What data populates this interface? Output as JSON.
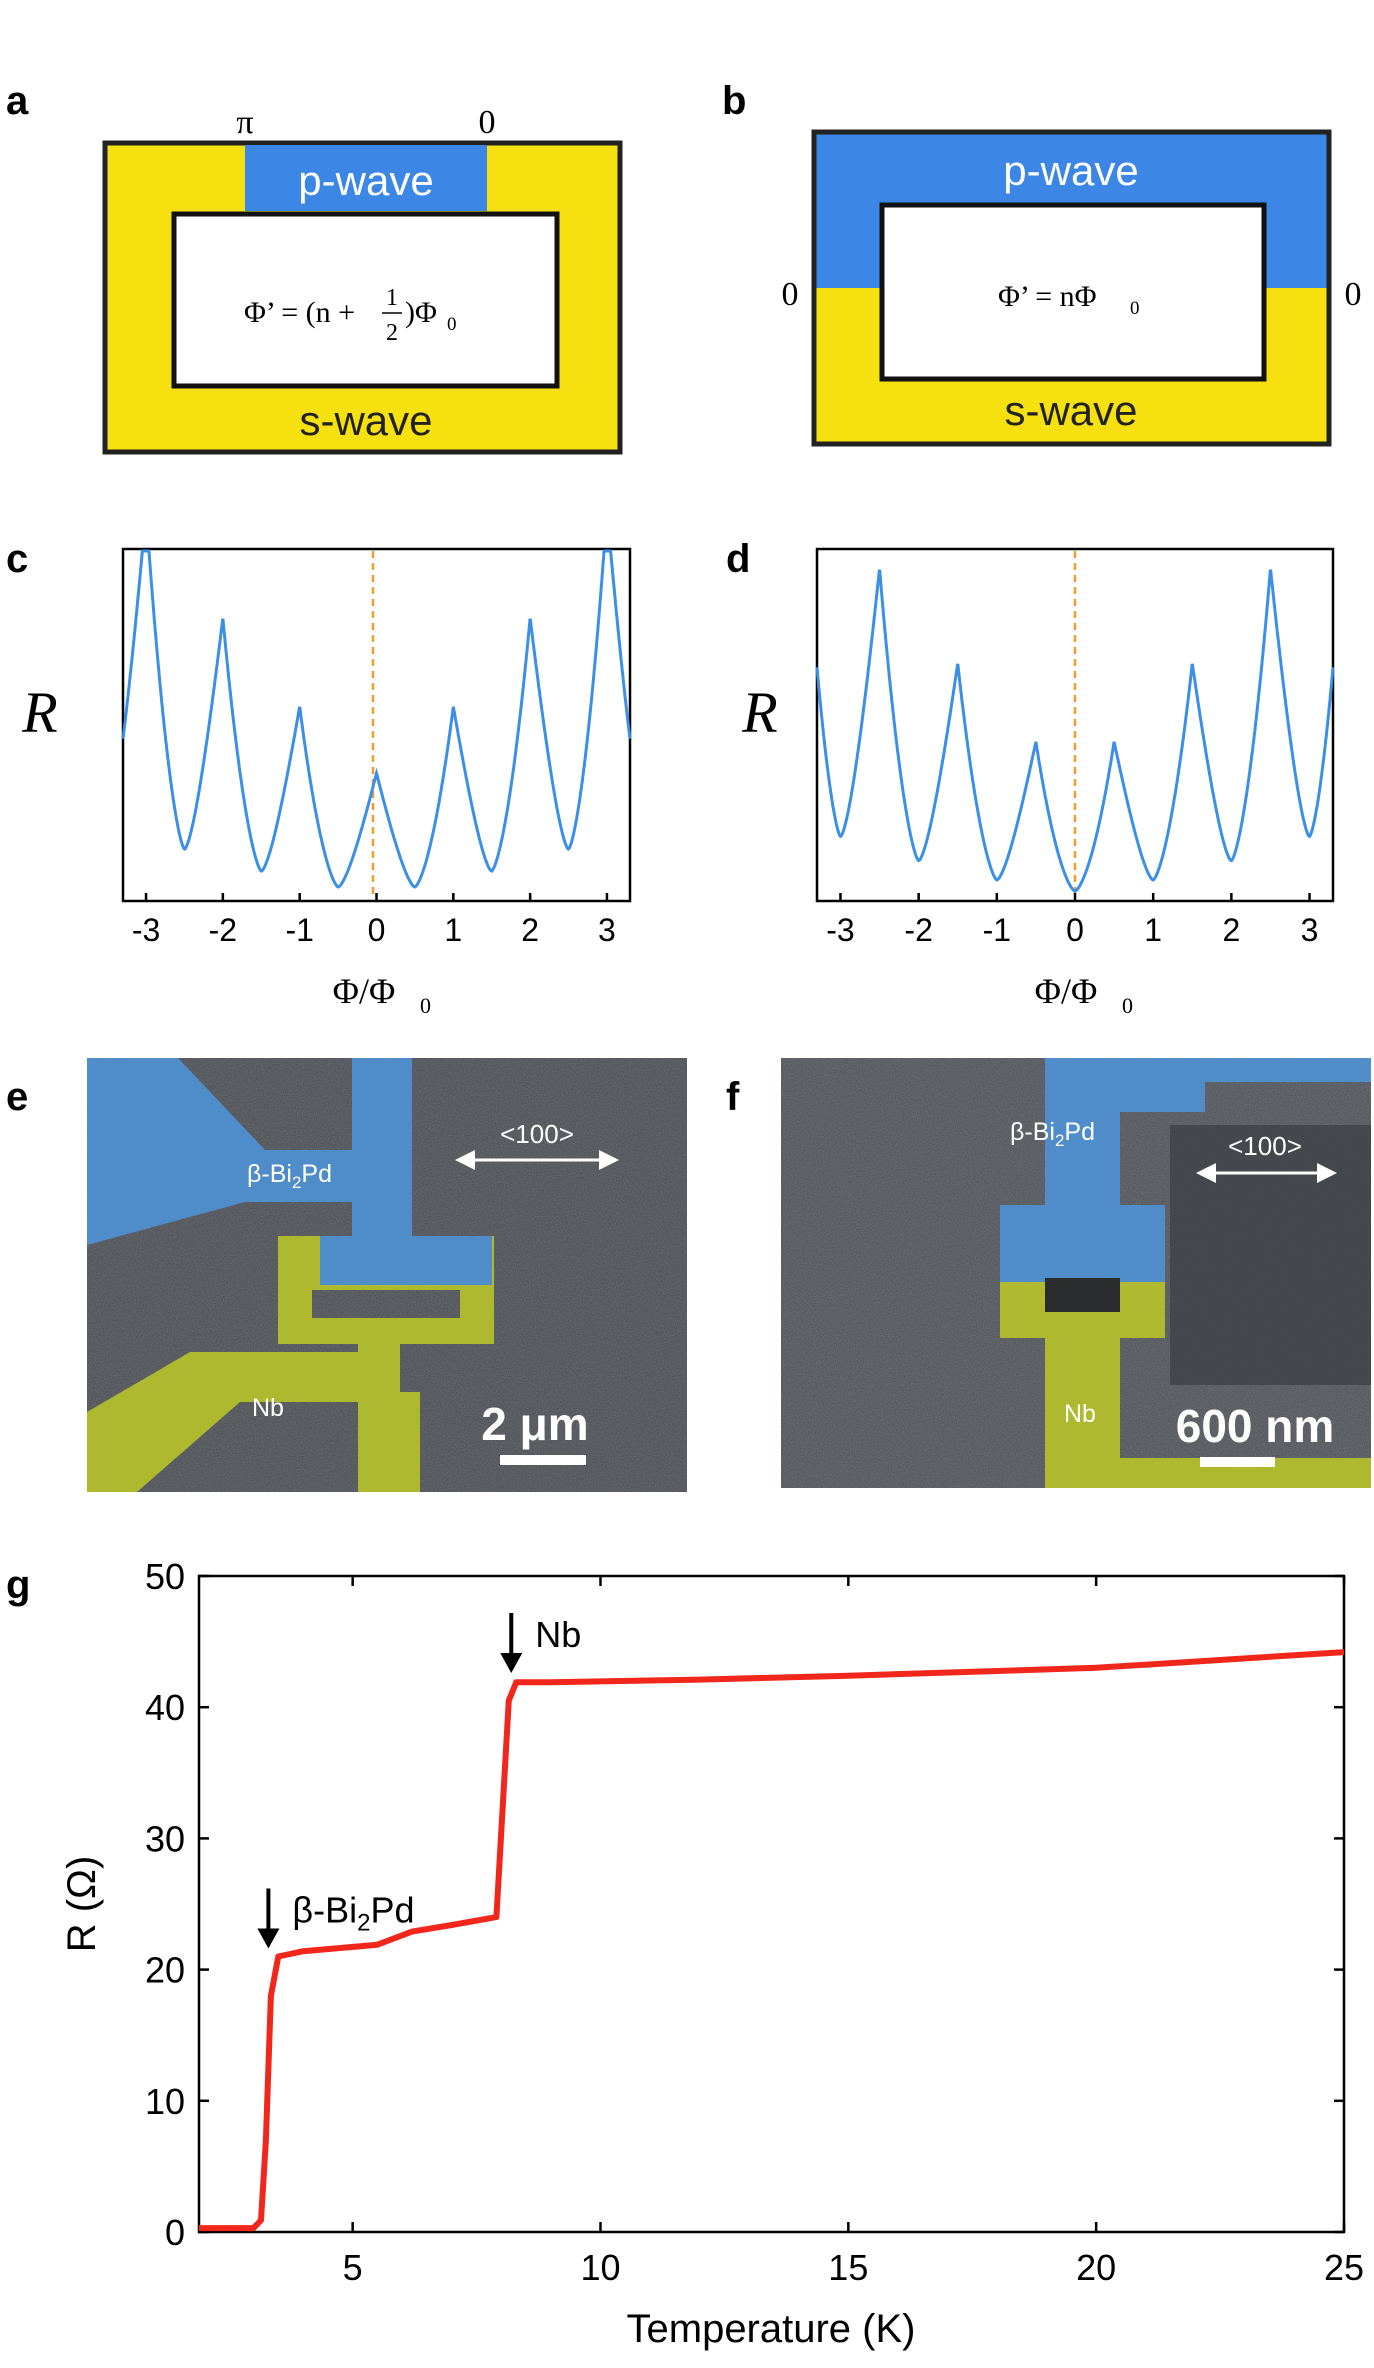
{
  "colors": {
    "s_wave": "#F7E010",
    "p_wave": "#3C86E6",
    "curve_blue": "#3C8FE6",
    "dashed_orange": "#F39A2E",
    "red_curve": "#F2271C",
    "sem_gray": "#4A4E52",
    "sem_blue": "#4F8FD0",
    "sem_green": "#B2BE2C"
  },
  "panel_labels": {
    "a": "a",
    "b": "b",
    "c": "c",
    "d": "d",
    "e": "e",
    "f": "f",
    "g": "g"
  },
  "panel_a": {
    "top_label": "p-wave",
    "bottom_label": "s-wave",
    "phase_left": "π",
    "phase_right": "0",
    "formula_lhs": "Φ’ = (n +",
    "formula_num": "1",
    "formula_den": "2",
    "formula_rhs": ")Φ",
    "formula_sub": "0"
  },
  "panel_b": {
    "top_label": "p-wave",
    "bottom_label": "s-wave",
    "phase_left": "0",
    "phase_right": "0",
    "formula_lhs": "Φ’ = nΦ",
    "formula_sub": "0"
  },
  "panel_c": {
    "ylabel": "R",
    "xlabel_main": "Φ/Φ",
    "xlabel_sub": "0",
    "xticks": [
      "-3",
      "-2",
      "-1",
      "0",
      "1",
      "2",
      "3"
    ]
  },
  "panel_d": {
    "ylabel": "R",
    "xlabel_main": "Φ/Φ",
    "xlabel_sub": "0",
    "xticks": [
      "-3",
      "-2",
      "-1",
      "0",
      "1",
      "2",
      "3"
    ]
  },
  "panel_e": {
    "material_label_prefix": "β-Bi",
    "material_label_sub": "2",
    "material_label_suffix": "Pd",
    "nb_label": "Nb",
    "direction_label": "<100>",
    "scale_bar": "2 μm"
  },
  "panel_f": {
    "material_label_prefix": "β-Bi",
    "material_label_sub": "2",
    "material_label_suffix": "Pd",
    "nb_label": "Nb",
    "direction_label": "<100>",
    "scale_bar": "600 nm"
  },
  "chart_data": [
    {
      "panel": "c",
      "type": "line",
      "xlabel": "Φ/Φ0",
      "ylabel": "R",
      "xlim": [
        -3.3,
        3.3
      ],
      "xticks": [
        -3,
        -2,
        -1,
        0,
        1,
        2,
        3
      ],
      "dashed_vline_x": 0,
      "minima": [
        -2.5,
        -1.5,
        -0.5,
        0.5,
        1.5,
        2.5
      ],
      "peaks": [
        -3,
        -2,
        -1,
        0,
        1,
        2,
        3
      ],
      "description": "cusped periodic resistance with minima at half-integer flux"
    },
    {
      "panel": "d",
      "type": "line",
      "xlabel": "Φ/Φ0",
      "ylabel": "R",
      "xlim": [
        -3.3,
        3.3
      ],
      "xticks": [
        -3,
        -2,
        -1,
        0,
        1,
        2,
        3
      ],
      "dashed_vline_x": 0,
      "minima": [
        -3,
        -2,
        -1,
        0,
        1,
        2,
        3
      ],
      "peaks": [
        -2.5,
        -1.5,
        -0.5,
        0.5,
        1.5,
        2.5
      ],
      "description": "cusped periodic resistance with minima at integer flux"
    },
    {
      "panel": "g",
      "type": "line",
      "xlabel": "Temperature (K)",
      "ylabel": "R (Ω)",
      "xlim": [
        1.9,
        25
      ],
      "ylim": [
        0,
        50
      ],
      "xticks": [
        5,
        10,
        15,
        20,
        25
      ],
      "yticks": [
        0,
        10,
        20,
        30,
        40,
        50
      ],
      "series": [
        {
          "name": "R(T)",
          "x": [
            1.9,
            3.0,
            3.15,
            3.25,
            3.35,
            3.5,
            4.0,
            5.5,
            6.2,
            7.0,
            7.9,
            8.15,
            8.3,
            9.0,
            12,
            15,
            20,
            25
          ],
          "y": [
            0.3,
            0.3,
            0.9,
            7,
            18,
            21,
            21.4,
            21.9,
            22.9,
            23.4,
            24,
            40.5,
            41.9,
            41.9,
            42.1,
            42.4,
            43.0,
            44.2
          ]
        }
      ],
      "annotations": [
        {
          "text": "β-Bi2Pd",
          "x": 3.3,
          "y": 21
        },
        {
          "text": "Nb",
          "x": 8.2,
          "y": 42
        }
      ]
    }
  ]
}
